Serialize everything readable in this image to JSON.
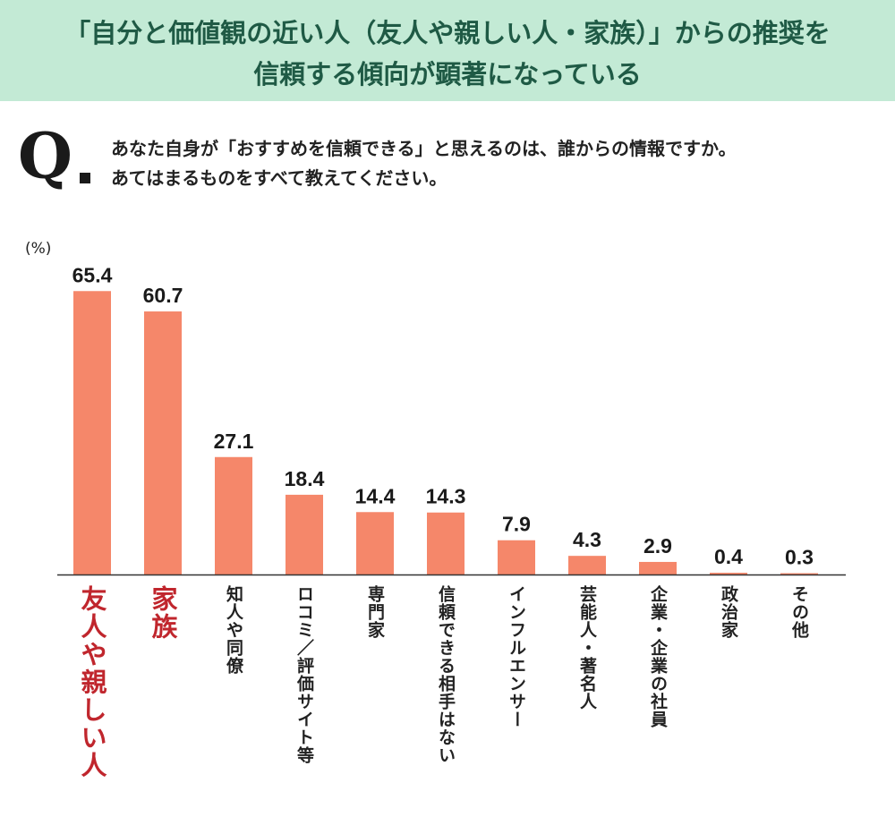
{
  "header": {
    "line1": "「自分と価値観の近い人（友人や親しい人・家族）」からの推奨を",
    "line2": "信頼する傾向が顕著になっている"
  },
  "question": {
    "mark": "Q",
    "line1": "あなた自身が「おすすめを信頼できる」と思えるのは、誰からの情報ですか。",
    "line2": "あてはまるものをすべて教えてください。"
  },
  "colors": {
    "bar": "#f5876a",
    "highlight_text": "#c0262d",
    "header_bg": "#c3ead5",
    "header_text": "#1f5a45"
  },
  "chart_data": {
    "type": "bar",
    "unit_label": "(%)",
    "categories": [
      "友人や親しい人",
      "家族",
      "知人や同僚",
      "ロコミ／評価サイト等",
      "専門家",
      "信頼できる相手はない",
      "インフルエンサー",
      "芸能人・著名人",
      "企業・企業の社員",
      "政治家",
      "その他"
    ],
    "values": [
      65.4,
      60.7,
      27.1,
      18.4,
      14.4,
      14.3,
      7.9,
      4.3,
      2.9,
      0.4,
      0.3
    ],
    "value_labels": [
      "65.4",
      "60.7",
      "27.1",
      "18.4",
      "14.4",
      "14.3",
      "7.9",
      "4.3",
      "2.9",
      "0.4",
      "0.3"
    ],
    "highlighted": [
      0,
      1
    ],
    "ylim": [
      0,
      70
    ],
    "xlabel": "",
    "ylabel": ""
  }
}
